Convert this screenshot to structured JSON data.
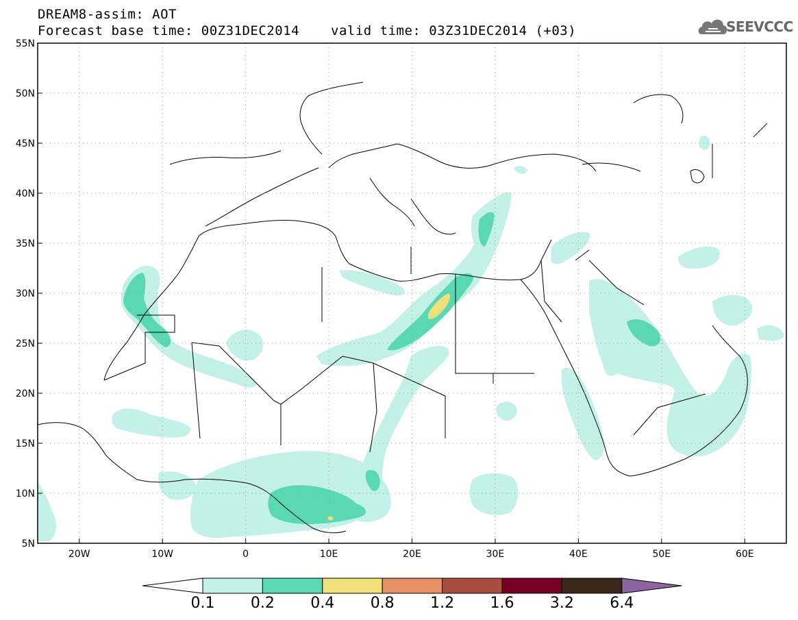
{
  "header": {
    "line1": "DREAM8-assim: AOT",
    "base_time": "Forecast base time: 00Z31DEC2014",
    "valid_time": "valid time: 03Z31DEC2014 (+03)"
  },
  "logo": {
    "text": "SEEVCCC",
    "icon": "cloud-icon"
  },
  "map": {
    "lon_range": [
      -25,
      65
    ],
    "lat_range": [
      5,
      55
    ],
    "lon_ticks": [
      {
        "lon": -20,
        "label": "20W"
      },
      {
        "lon": -10,
        "label": "10W"
      },
      {
        "lon": 0,
        "label": "0"
      },
      {
        "lon": 10,
        "label": "10E"
      },
      {
        "lon": 20,
        "label": "20E"
      },
      {
        "lon": 30,
        "label": "30E"
      },
      {
        "lon": 40,
        "label": "40E"
      },
      {
        "lon": 50,
        "label": "50E"
      },
      {
        "lon": 60,
        "label": "60E"
      }
    ],
    "lat_ticks": [
      {
        "lat": 5,
        "label": "5N"
      },
      {
        "lat": 10,
        "label": "10N"
      },
      {
        "lat": 15,
        "label": "15N"
      },
      {
        "lat": 20,
        "label": "20N"
      },
      {
        "lat": 25,
        "label": "25N"
      },
      {
        "lat": 30,
        "label": "30N"
      },
      {
        "lat": 35,
        "label": "35N"
      },
      {
        "lat": 40,
        "label": "40N"
      },
      {
        "lat": 45,
        "label": "45N"
      },
      {
        "lat": 50,
        "label": "50N"
      },
      {
        "lat": 55,
        "label": "55N"
      }
    ],
    "grid": true
  },
  "colorbar": {
    "colors": [
      "#c4f0ea",
      "#5ad8b4",
      "#f0e07a",
      "#e69068",
      "#a84e40",
      "#780020",
      "#3c2818",
      "#8c64a0"
    ],
    "labels": [
      "0.1",
      "0.2",
      "0.4",
      "0.8",
      "1.2",
      "1.6",
      "3.2",
      "6.4"
    ]
  }
}
